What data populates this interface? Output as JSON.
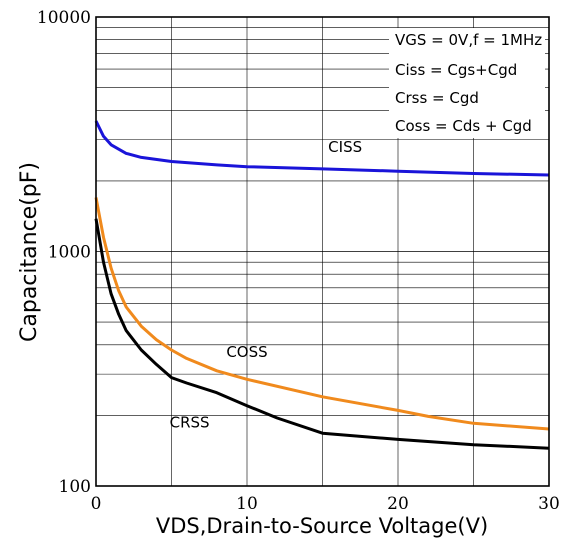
{
  "chart_data": {
    "type": "line",
    "xlabel": "VDS,Drain-to-Source Voltage(V)",
    "ylabel": "Capacitance(pF)",
    "xlim": [
      0,
      30
    ],
    "ylim": [
      100,
      10000
    ],
    "yscale": "log",
    "x_ticks": [
      "0",
      "10",
      "20",
      "30"
    ],
    "y_ticks": [
      "100",
      "1000",
      "10000"
    ],
    "grid": true,
    "legend": "none",
    "notes": [
      "VGS  = 0V,f = 1MHz",
      "Ciss = Cgs+Cgd",
      "Crss = Cgd",
      "Coss = Cds + Cgd"
    ],
    "series": [
      {
        "name": "CISS",
        "color": "#1a14d9",
        "x": [
          0,
          0.5,
          1,
          2,
          3,
          5,
          8,
          10,
          15,
          20,
          25,
          30
        ],
        "y": [
          3600,
          3100,
          2850,
          2620,
          2520,
          2420,
          2340,
          2300,
          2250,
          2200,
          2150,
          2120
        ]
      },
      {
        "name": "COSS",
        "color": "#f08a1d",
        "x": [
          0,
          0.5,
          1,
          1.5,
          2,
          3,
          4,
          5,
          6,
          8,
          10,
          15,
          20,
          22,
          25,
          30
        ],
        "y": [
          1700,
          1150,
          850,
          680,
          580,
          480,
          420,
          380,
          350,
          310,
          285,
          240,
          210,
          198,
          185,
          175
        ]
      },
      {
        "name": "CRSS",
        "color": "#000000",
        "x": [
          0,
          0.5,
          1,
          1.5,
          2,
          3,
          4,
          5,
          6,
          8,
          10,
          12,
          15,
          20,
          25,
          30
        ],
        "y": [
          1380,
          900,
          660,
          540,
          460,
          380,
          330,
          290,
          275,
          250,
          220,
          195,
          168,
          158,
          150,
          145
        ]
      }
    ]
  }
}
